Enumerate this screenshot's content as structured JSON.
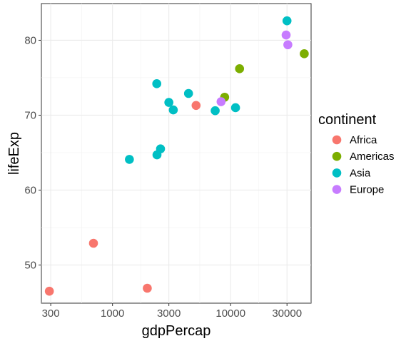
{
  "chart_data": {
    "type": "scatter",
    "title": "",
    "xlabel": "gdpPercap",
    "ylabel": "lifeExp",
    "x_scale": "log10",
    "xlim": [
      250,
      48000
    ],
    "ylim": [
      44.9,
      84.9
    ],
    "x_ticks": [
      300,
      1000,
      3000,
      10000,
      30000
    ],
    "x_tick_labels": [
      "300",
      "1000",
      "3000",
      "10000",
      "30000"
    ],
    "y_ticks": [
      50,
      60,
      70,
      80
    ],
    "y_tick_labels": [
      "50",
      "60",
      "70",
      "80"
    ],
    "grid": true,
    "legend_position": "right",
    "legend_title": "continent",
    "series": [
      {
        "name": "Africa",
        "color": "#F8766D",
        "points": [
          {
            "x": 292,
            "y": 46.5
          },
          {
            "x": 690,
            "y": 52.9
          },
          {
            "x": 1970,
            "y": 46.9
          },
          {
            "x": 5100,
            "y": 71.3
          }
        ]
      },
      {
        "name": "Americas",
        "color": "#7CAE00",
        "points": [
          {
            "x": 8900,
            "y": 72.4
          },
          {
            "x": 11900,
            "y": 76.2
          },
          {
            "x": 42000,
            "y": 78.2
          }
        ]
      },
      {
        "name": "Asia",
        "color": "#00BFC4",
        "points": [
          {
            "x": 1390,
            "y": 64.1
          },
          {
            "x": 2370,
            "y": 74.2
          },
          {
            "x": 2380,
            "y": 64.7
          },
          {
            "x": 2550,
            "y": 65.5
          },
          {
            "x": 3000,
            "y": 71.7
          },
          {
            "x": 3270,
            "y": 70.7
          },
          {
            "x": 4400,
            "y": 72.9
          },
          {
            "x": 7400,
            "y": 70.6
          },
          {
            "x": 11000,
            "y": 71.0
          },
          {
            "x": 30000,
            "y": 82.6
          }
        ]
      },
      {
        "name": "Europe",
        "color": "#C77CFF",
        "points": [
          {
            "x": 8300,
            "y": 71.8
          },
          {
            "x": 29500,
            "y": 80.7
          },
          {
            "x": 30500,
            "y": 79.4
          }
        ]
      }
    ]
  }
}
